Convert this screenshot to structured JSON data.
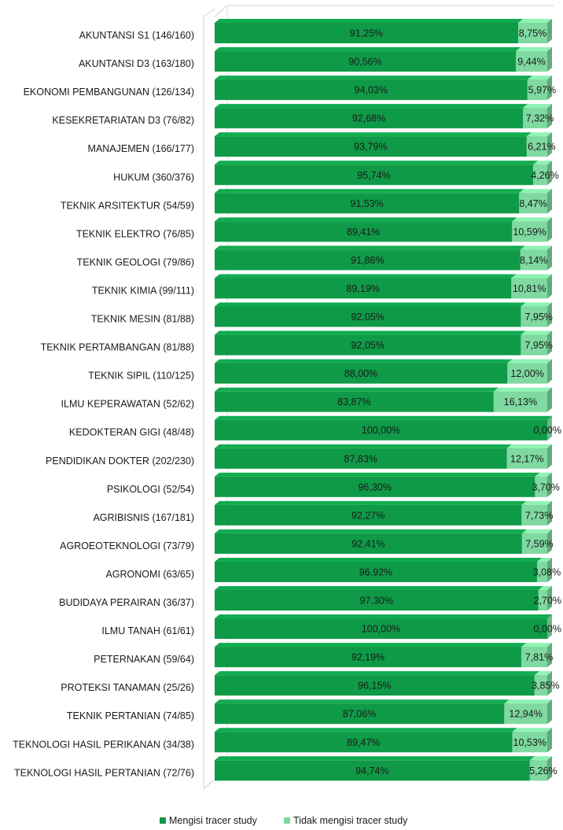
{
  "chart_data": {
    "type": "bar",
    "orientation": "horizontal",
    "stacked": true,
    "percent_stacked": true,
    "style": "3d",
    "xlim": [
      0,
      100
    ],
    "grid": false,
    "legend_position": "bottom",
    "categories": [
      "AKUNTANSI S1 (146/160)",
      "AKUNTANSI D3 (163/180)",
      "EKONOMI PEMBANGUNAN (126/134)",
      "KESEKRETARIATAN D3 (76/82)",
      "MANAJEMEN (166/177)",
      "HUKUM (360/376)",
      "TEKNIK ARSITEKTUR (54/59)",
      "TEKNIK ELEKTRO (76/85)",
      "TEKNIK GEOLOGI (79/86)",
      "TEKNIK KIMIA (99/111)",
      "TEKNIK MESIN (81/88)",
      "TEKNIK PERTAMBANGAN (81/88)",
      "TEKNIK SIPIL (110/125)",
      "ILMU KEPERAWATAN (52/62)",
      "KEDOKTERAN GIGI (48/48)",
      "PENDIDIKAN DOKTER (202/230)",
      "PSIKOLOGI (52/54)",
      "AGRIBISNIS (167/181)",
      "AGROEOTEKNOLOGI (73/79)",
      "AGRONOMI (63/65)",
      "BUDIDAYA PERAIRAN (36/37)",
      "ILMU TANAH (61/61)",
      "PETERNAKAN (59/64)",
      "PROTEKSI TANAMAN (25/26)",
      "TEKNIK PERTANIAN (74/85)",
      "TEKNOLOGI HASIL PERIKANAN (34/38)",
      "TEKNOLOGI HASIL PERTANIAN (72/76)"
    ],
    "series": [
      {
        "name": "Mengisi tracer study",
        "color": "#0f9a47",
        "values": [
          91.25,
          90.56,
          94.03,
          92.68,
          93.79,
          95.74,
          91.53,
          89.41,
          91.86,
          89.19,
          92.05,
          92.05,
          88.0,
          83.87,
          100.0,
          87.83,
          96.3,
          92.27,
          92.41,
          96.92,
          97.3,
          100.0,
          92.19,
          96.15,
          87.06,
          89.47,
          94.74
        ],
        "labels": [
          "91,25%",
          "90,56%",
          "94,03%",
          "92,68%",
          "93,79%",
          "95,74%",
          "91,53%",
          "89,41%",
          "91,86%",
          "89,19%",
          "92,05%",
          "92,05%",
          "88,00%",
          "83,87%",
          "100,00%",
          "87,83%",
          "96,30%",
          "92,27%",
          "92,41%",
          "96,92%",
          "97,30%",
          "100,00%",
          "92,19%",
          "96,15%",
          "87,06%",
          "89,47%",
          "94,74%"
        ]
      },
      {
        "name": "Tidak mengisi tracer study",
        "color": "#7fd9a0",
        "values": [
          8.75,
          9.44,
          5.97,
          7.32,
          6.21,
          4.26,
          8.47,
          10.59,
          8.14,
          10.81,
          7.95,
          7.95,
          12.0,
          16.13,
          0.0,
          12.17,
          3.7,
          7.73,
          7.59,
          3.08,
          2.7,
          0.0,
          7.81,
          3.85,
          12.94,
          10.53,
          5.26
        ],
        "labels": [
          "8,75%",
          "9,44%",
          "5,97%",
          "7,32%",
          "6,21%",
          "4,26%",
          "8,47%",
          "10,59%",
          "8,14%",
          "10,81%",
          "7,95%",
          "7,95%",
          "12,00%",
          "16,13%",
          "0,00%",
          "12,17%",
          "3,70%",
          "7,73%",
          "7,59%",
          "3,08%",
          "2,70%",
          "0,00%",
          "7,81%",
          "3,85%",
          "12,94%",
          "10,53%",
          "5,26%"
        ]
      }
    ]
  }
}
